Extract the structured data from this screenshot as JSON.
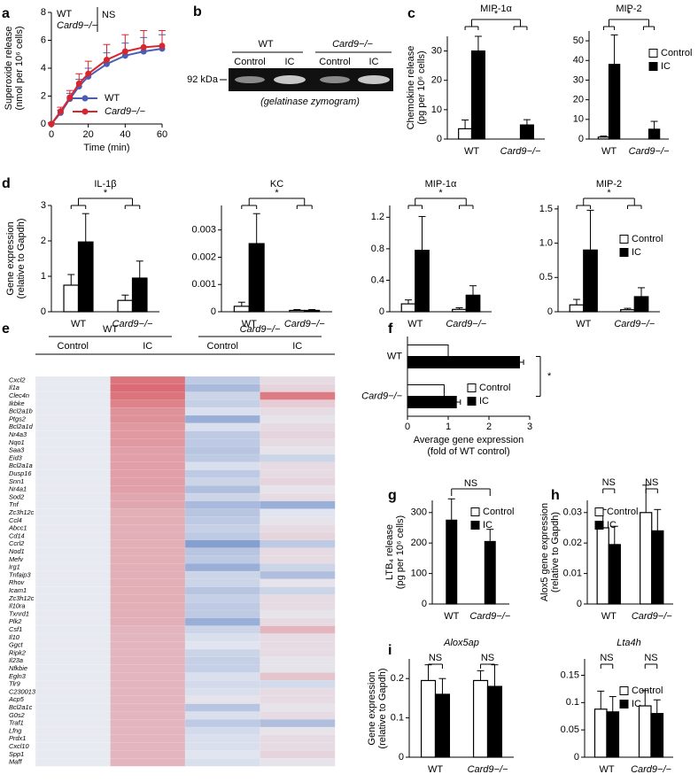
{
  "chart_data": [
    {
      "type": "line",
      "panel": "a",
      "xlabel": "Time (min)",
      "ylabel": [
        "Superoxide release",
        "(nmol per 10⁶ cells)"
      ],
      "x": [
        0,
        5,
        10,
        15,
        20,
        30,
        40,
        50,
        60
      ],
      "xlim": [
        0,
        60
      ],
      "xticks": [
        0,
        20,
        40,
        60
      ],
      "ylim": [
        0,
        8
      ],
      "yticks": [
        0,
        2,
        4,
        6,
        8
      ],
      "series": [
        {
          "name": "WT",
          "color": "#4a5fb4",
          "values": [
            0,
            0.8,
            1.8,
            2.7,
            3.4,
            4.3,
            4.9,
            5.2,
            5.4
          ],
          "errors": [
            0,
            0.2,
            0.4,
            0.5,
            0.6,
            0.8,
            0.9,
            1.0,
            1.0
          ]
        },
        {
          "name": "Card9−/−",
          "color": "#d7262e",
          "values": [
            0,
            0.9,
            1.9,
            2.9,
            3.6,
            4.6,
            5.2,
            5.5,
            5.6
          ],
          "errors": [
            0.1,
            0.3,
            0.5,
            0.7,
            0.9,
            1.1,
            1.2,
            1.2,
            1.1
          ]
        }
      ],
      "annotations": [
        "WT",
        "Card9−/−",
        "NS"
      ],
      "legend": "lower right"
    },
    {
      "type": "bar",
      "panel": "c",
      "title": "MIP-1α",
      "ylabel": [
        "Chemokine release",
        "(pg per 10⁶ cells)"
      ],
      "categories": [
        "WT",
        "Card9−/−"
      ],
      "ylim": [
        0,
        35
      ],
      "yticks": [
        0,
        10,
        20,
        30
      ],
      "series": [
        {
          "name": "Control",
          "color": "#ffffff",
          "values": [
            3.5,
            0
          ],
          "errors": [
            3,
            0
          ]
        },
        {
          "name": "IC",
          "color": "#000000",
          "values": [
            30,
            4.8
          ],
          "errors": [
            5,
            1.8
          ]
        }
      ],
      "annotations": [
        "*"
      ]
    },
    {
      "type": "bar",
      "title": "MIP-2",
      "categories": [
        "WT",
        "Card9−/−"
      ],
      "ylim": [
        0,
        55
      ],
      "yticks": [
        0,
        10,
        20,
        30,
        40,
        50
      ],
      "series": [
        {
          "name": "Control",
          "color": "#ffffff",
          "values": [
            1,
            0
          ],
          "errors": [
            0.5,
            0
          ]
        },
        {
          "name": "IC",
          "color": "#000000",
          "values": [
            38,
            5
          ],
          "errors": [
            15,
            4
          ]
        }
      ],
      "annotations": [
        "*"
      ],
      "legend": "upper right"
    },
    {
      "type": "bar",
      "panel": "d",
      "title": "IL-1β",
      "ylabel": [
        "Gene expression",
        "(relative to Gapdh)"
      ],
      "categories": [
        "WT",
        "Card9−/−"
      ],
      "ylim": [
        0,
        3
      ],
      "yticks": [
        0,
        1,
        2,
        3
      ],
      "series": [
        {
          "name": "Control",
          "color": "#ffffff",
          "values": [
            0.75,
            0.32
          ],
          "errors": [
            0.3,
            0.15
          ]
        },
        {
          "name": "IC",
          "color": "#000000",
          "values": [
            1.97,
            0.95
          ],
          "errors": [
            0.8,
            0.48
          ]
        }
      ],
      "annotations": [
        "*"
      ]
    },
    {
      "type": "bar",
      "title": "KC",
      "categories": [
        "WT",
        "Card9−/−"
      ],
      "ylim": [
        0,
        0.0039
      ],
      "yticks": [
        0,
        0.001,
        0.002,
        0.003
      ],
      "series": [
        {
          "name": "Control",
          "color": "#ffffff",
          "values": [
            0.0002,
            5e-05
          ],
          "errors": [
            0.00015,
            3e-05
          ]
        },
        {
          "name": "IC",
          "color": "#000000",
          "values": [
            0.0025,
            5e-05
          ],
          "errors": [
            0.0011,
            3e-05
          ]
        }
      ],
      "annotations": [
        "*"
      ]
    },
    {
      "type": "bar",
      "title": "MIP-1α",
      "categories": [
        "WT",
        "Card9−/−"
      ],
      "ylim": [
        0,
        1.35
      ],
      "yticks": [
        0,
        0.4,
        0.8,
        1.2
      ],
      "series": [
        {
          "name": "Control",
          "color": "#ffffff",
          "values": [
            0.1,
            0.03
          ],
          "errors": [
            0.05,
            0.02
          ]
        },
        {
          "name": "IC",
          "color": "#000000",
          "values": [
            0.78,
            0.21
          ],
          "errors": [
            0.43,
            0.12
          ]
        }
      ],
      "annotations": [
        "*"
      ]
    },
    {
      "type": "bar",
      "title": "MIP-2",
      "categories": [
        "WT",
        "Card9−/−"
      ],
      "ylim": [
        0,
        1.55
      ],
      "yticks": [
        0,
        0.5,
        {
          "value": 1,
          "label": "1.0"
        },
        1.5
      ],
      "series": [
        {
          "name": "Control",
          "color": "#ffffff",
          "values": [
            0.1,
            0.03
          ],
          "errors": [
            0.08,
            0.02
          ]
        },
        {
          "name": "IC",
          "color": "#000000",
          "values": [
            0.9,
            0.22
          ],
          "errors": [
            0.58,
            0.13
          ]
        }
      ],
      "annotations": [
        "*"
      ],
      "legend": "upper right"
    },
    {
      "type": "heatmap",
      "panel": "e",
      "groups": [
        "WT",
        "Card9−/−"
      ],
      "columns": [
        "Control",
        "IC",
        "Control",
        "IC"
      ],
      "zlim": [
        -1,
        1
      ],
      "colormap": [
        "#5b7fc0",
        "#e8eaf2",
        "#d9565f"
      ],
      "categories": [
        "Cxcl2",
        "Il1a",
        "Clec4n",
        "Ikbke",
        "Bcl2a1b",
        "Ptgs2",
        "Bcl2a1d",
        "Nr4a3",
        "Nqo1",
        "Saa3",
        "Eid3",
        "Bcl2a1a",
        "Dusp16",
        "Snn1",
        "Nr4a1",
        "Sod2",
        "Tnf",
        "Zc3h12c",
        "Ccl4",
        "Abcc1",
        "Cd14",
        "Ccrl2",
        "Nod1",
        "Mefv",
        "Irg1",
        "Tnfaip3",
        "Rhov",
        "Icam1",
        "Zc3h12c",
        "Il10ra",
        "Txnrd1",
        "Plk2",
        "Csf1",
        "Il10",
        "Ggct",
        "Ripk2",
        "Il23a",
        "Nfkbie",
        "Egln3",
        "Tlr9",
        "C230013",
        "Acp5",
        "Bcl2a1c",
        "G0s2",
        "Traf1",
        "Lfng",
        "Prdx1",
        "Cxcl10",
        "Spp1",
        "Maff"
      ],
      "values": [
        [
          0,
          0.8,
          -0.3,
          0.1
        ],
        [
          0,
          0.85,
          -0.45,
          0.15
        ],
        [
          0,
          0.8,
          -0.2,
          0.75
        ],
        [
          0,
          0.7,
          -0.25,
          0.2
        ],
        [
          0,
          0.6,
          -0.1,
          0.1
        ],
        [
          0,
          0.6,
          -0.55,
          0.05
        ],
        [
          0,
          0.55,
          -0.1,
          0.1
        ],
        [
          0,
          0.55,
          -0.3,
          0.15
        ],
        [
          0,
          0.55,
          -0.3,
          0.1
        ],
        [
          0,
          0.5,
          -0.35,
          0.05
        ],
        [
          0,
          0.5,
          -0.3,
          -0.2
        ],
        [
          0,
          0.5,
          -0.1,
          0.1
        ],
        [
          0,
          0.5,
          -0.3,
          0.1
        ],
        [
          0,
          0.5,
          -0.2,
          0.15
        ],
        [
          0,
          0.5,
          -0.4,
          0.05
        ],
        [
          0,
          0.45,
          -0.2,
          0.1
        ],
        [
          0,
          0.45,
          -0.45,
          -0.55
        ],
        [
          0,
          0.4,
          -0.35,
          -0.05
        ],
        [
          0,
          0.4,
          -0.3,
          0.05
        ],
        [
          0,
          0.4,
          -0.25,
          0.1
        ],
        [
          0,
          0.4,
          -0.3,
          0.15
        ],
        [
          0,
          0.4,
          -0.7,
          -0.3
        ],
        [
          0,
          0.4,
          -0.35,
          0.1
        ],
        [
          0,
          0.4,
          -0.3,
          0.1
        ],
        [
          0,
          0.4,
          -0.55,
          -0.2
        ],
        [
          0,
          0.4,
          -0.2,
          -0.4
        ],
        [
          0,
          0.4,
          -0.2,
          0.05
        ],
        [
          0,
          0.4,
          -0.35,
          -0.2
        ],
        [
          0,
          0.4,
          -0.25,
          0.1
        ],
        [
          0,
          0.4,
          -0.3,
          0.1
        ],
        [
          0,
          0.4,
          -0.3,
          0.05
        ],
        [
          0,
          0.4,
          -0.55,
          0.1
        ],
        [
          0,
          0.35,
          -0.2,
          0.35
        ],
        [
          0,
          0.35,
          -0.1,
          0.1
        ],
        [
          0,
          0.35,
          -0.05,
          0.1
        ],
        [
          0,
          0.35,
          -0.2,
          0.1
        ],
        [
          0,
          0.35,
          -0.25,
          0.05
        ],
        [
          0,
          0.35,
          -0.25,
          0.05
        ],
        [
          0,
          0.35,
          -0.1,
          0.25
        ],
        [
          0,
          0.35,
          -0.15,
          -0.15
        ],
        [
          0,
          0.35,
          -0.1,
          0.1
        ],
        [
          0,
          0.35,
          0.05,
          0.1
        ],
        [
          0,
          0.35,
          -0.35,
          0.05
        ],
        [
          0,
          0.35,
          -0.1,
          0.1
        ],
        [
          0,
          0.35,
          -0.3,
          -0.4
        ],
        [
          0,
          0.35,
          -0.15,
          0.05
        ],
        [
          0,
          0.35,
          -0.1,
          0.1
        ],
        [
          0,
          0.35,
          -0.1,
          0.1
        ],
        [
          0,
          0.35,
          -0.05,
          0.15
        ],
        [
          0,
          0.35,
          -0.1,
          0.05
        ]
      ]
    },
    {
      "type": "hbar",
      "panel": "f",
      "xlabel": [
        "Average gene expression",
        "(fold of WT control)"
      ],
      "categories": [
        "WT",
        "Card9−/−"
      ],
      "xlim": [
        0,
        3
      ],
      "xticks": [
        0,
        1,
        2,
        3
      ],
      "series": [
        {
          "name": "Control",
          "color": "#ffffff",
          "values": [
            1,
            0.9
          ],
          "errors": [
            0,
            0
          ]
        },
        {
          "name": "IC",
          "color": "#000000",
          "values": [
            2.75,
            1.2
          ],
          "errors": [
            0.1,
            0.1
          ]
        }
      ],
      "annotations": [
        "*"
      ],
      "legend": "lower right"
    },
    {
      "type": "bar",
      "panel": "g",
      "ylabel": [
        "LTB₄ release",
        "(pg per 10⁶ cells)"
      ],
      "categories": [
        "WT",
        "Card9−/−"
      ],
      "ylim": [
        0,
        340
      ],
      "yticks": [
        0,
        100,
        200,
        300
      ],
      "series": [
        {
          "name": "Control",
          "color": "#ffffff",
          "values": [
            null,
            null
          ],
          "errors": [
            null,
            null
          ]
        },
        {
          "name": "IC",
          "color": "#000000",
          "values": [
            275,
            205
          ],
          "errors": [
            70,
            40
          ]
        }
      ],
      "annotations": [
        "NS"
      ],
      "legend": "upper right"
    },
    {
      "type": "bar",
      "panel": "h",
      "ylabel": [
        "Alox5 gene expression",
        "(relative to Gapdh)"
      ],
      "categories": [
        "WT",
        "Card9−/−"
      ],
      "ylim": [
        0,
        0.034
      ],
      "yticks": [
        0,
        0.01,
        0.02,
        0.03
      ],
      "series": [
        {
          "name": "Control",
          "color": "#ffffff",
          "values": [
            0.025,
            0.03
          ],
          "errors": [
            0.006,
            0.009
          ]
        },
        {
          "name": "IC",
          "color": "#000000",
          "values": [
            0.0195,
            0.024
          ],
          "errors": [
            0.006,
            0.007
          ]
        }
      ],
      "annotations": [
        "NS",
        "NS"
      ],
      "legend": "upper left"
    },
    {
      "type": "bar",
      "panel": "i",
      "title": "Alox5ap",
      "ylabel": [
        "Gene expression",
        "(relative to Gapdh)"
      ],
      "categories": [
        "WT",
        "Card9−/−"
      ],
      "ylim": [
        0,
        0.25
      ],
      "yticks": [
        0,
        0.1,
        0.2
      ],
      "series": [
        {
          "name": "Control",
          "color": "#ffffff",
          "values": [
            0.195,
            0.195
          ],
          "errors": [
            0.04,
            0.025
          ]
        },
        {
          "name": "IC",
          "color": "#000000",
          "values": [
            0.16,
            0.18
          ],
          "errors": [
            0.04,
            0.055
          ]
        }
      ],
      "annotations": [
        "NS",
        "NS"
      ]
    },
    {
      "type": "bar",
      "title": "Lta4h",
      "categories": [
        "WT",
        "Card9−/−"
      ],
      "ylim": [
        0,
        0.18
      ],
      "yticks": [
        0,
        0.05,
        0.1,
        0.15
      ],
      "series": [
        {
          "name": "Control",
          "color": "#ffffff",
          "values": [
            0.088,
            0.094
          ],
          "errors": [
            0.033,
            0.028
          ]
        },
        {
          "name": "IC",
          "color": "#000000",
          "values": [
            0.083,
            0.08
          ],
          "errors": [
            0.028,
            0.025
          ]
        }
      ],
      "annotations": [
        "NS",
        "NS"
      ],
      "legend": "upper right"
    }
  ],
  "gel": {
    "panel": "b",
    "groups": [
      "WT",
      "Card9−/−"
    ],
    "lanes": [
      "Control",
      "IC",
      "Control",
      "IC"
    ],
    "marker": "92 kDa",
    "caption": "(gelatinase zymogram)"
  }
}
